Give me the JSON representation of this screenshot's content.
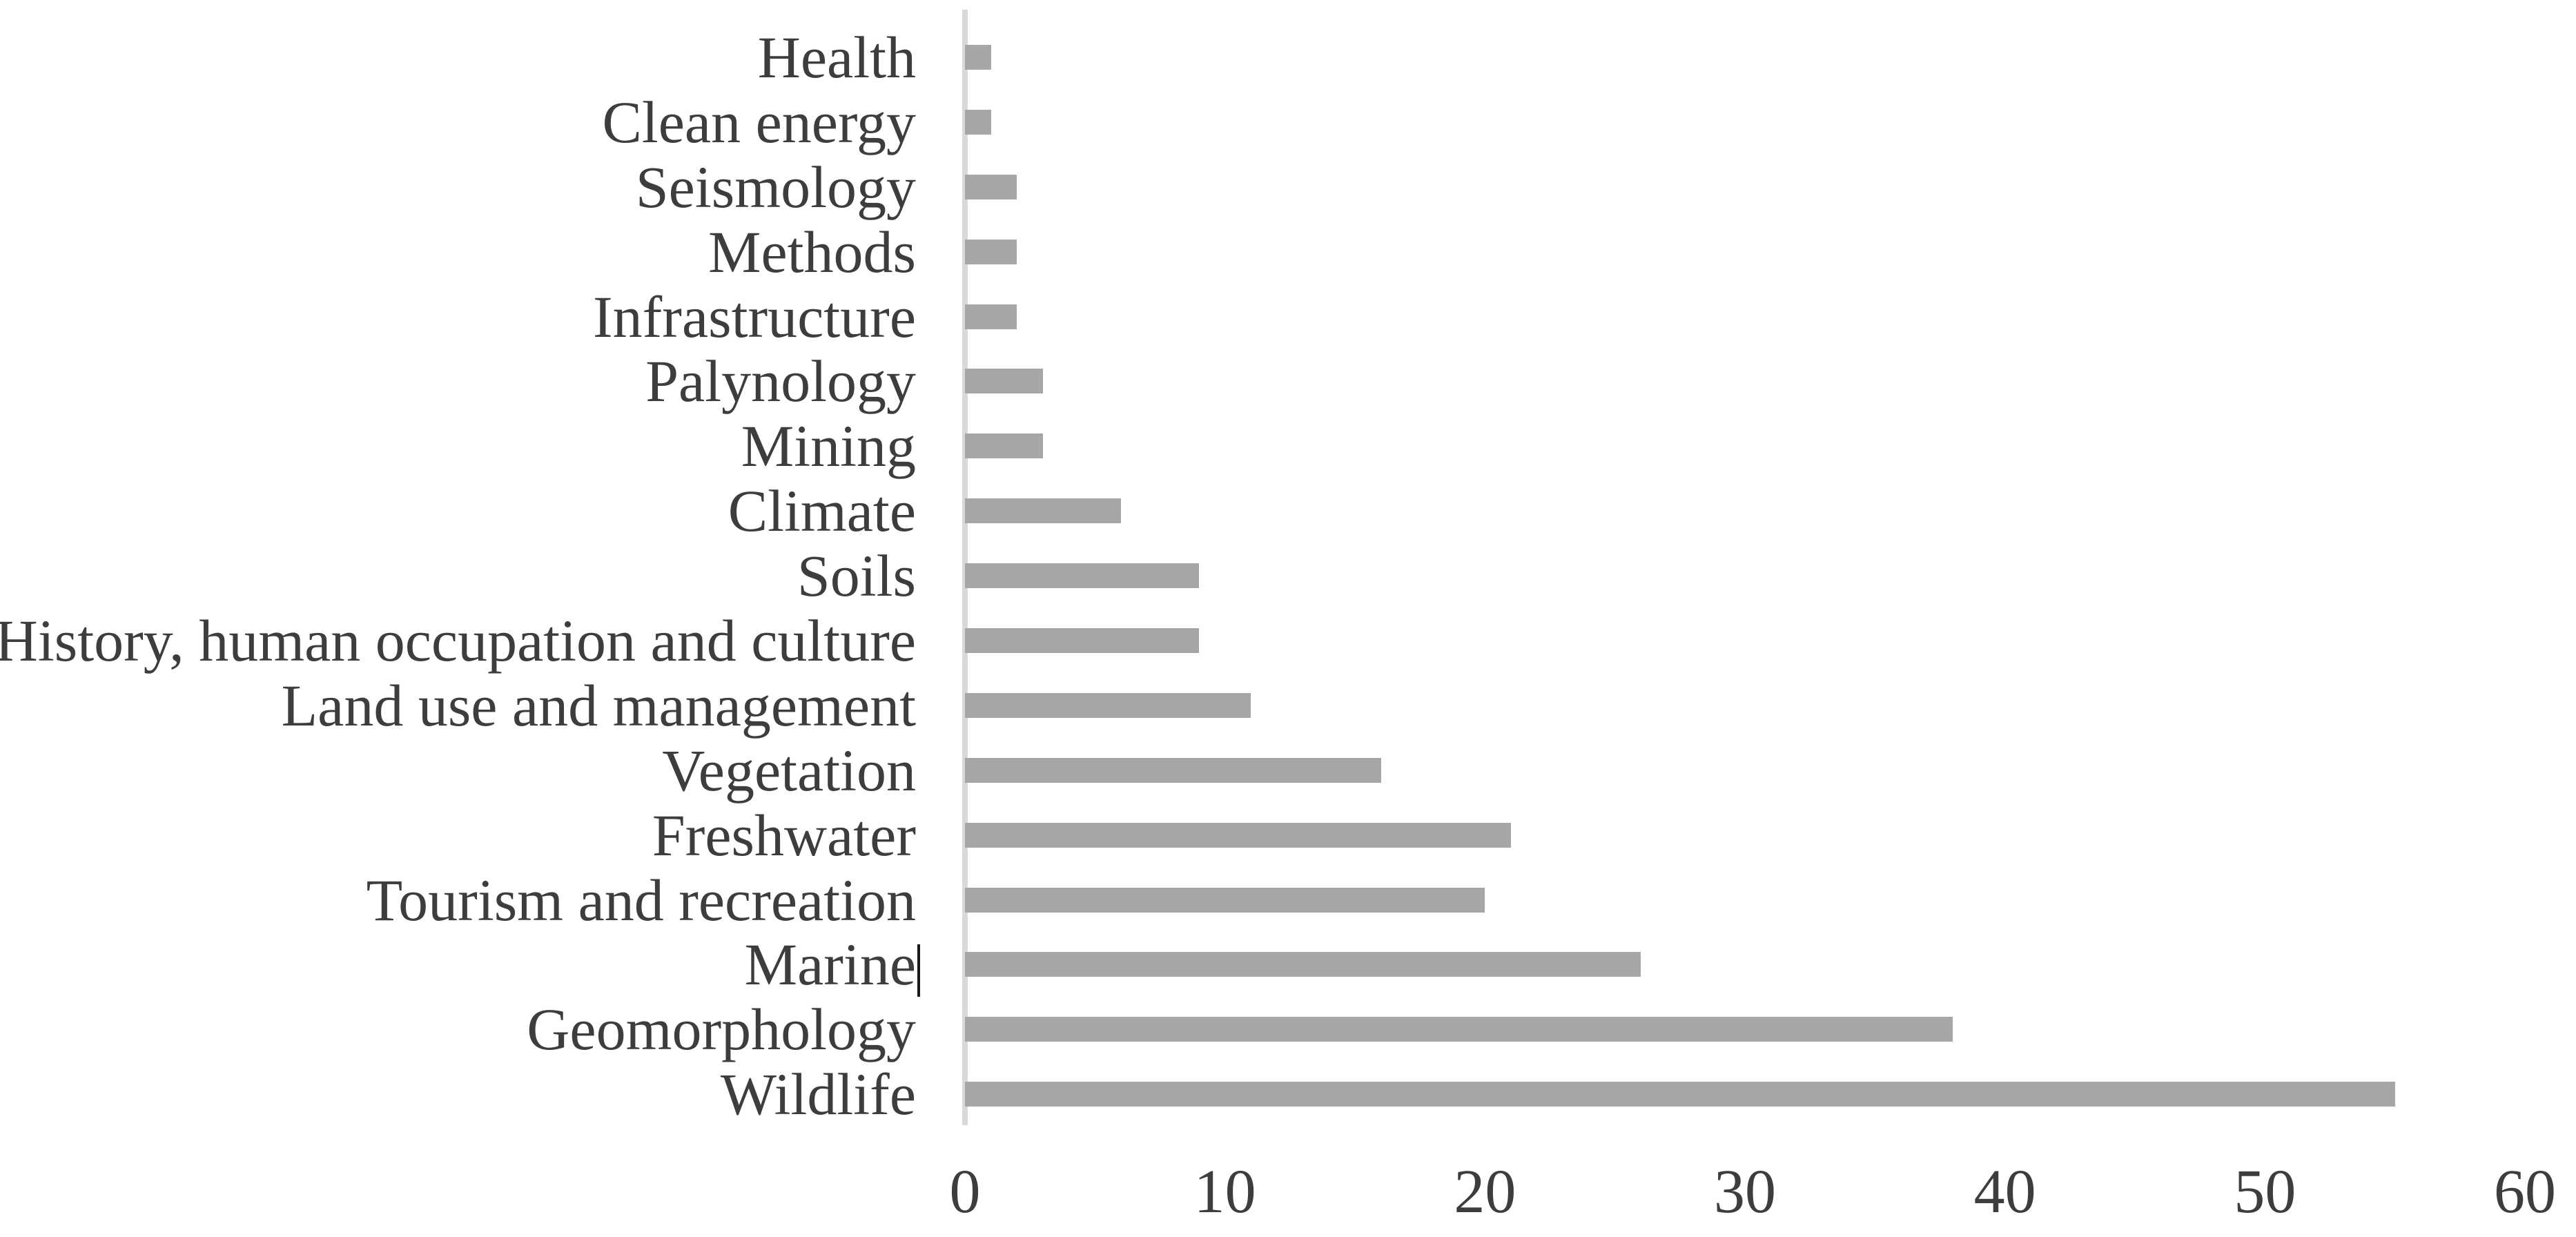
{
  "chart_data": {
    "type": "bar",
    "orientation": "horizontal",
    "title": "",
    "xlabel": "",
    "ylabel": "",
    "categories": [
      "Health",
      "Clean energy",
      "Seismology",
      "Methods",
      "Infrastructure",
      "Palynology",
      "Mining",
      "Climate",
      "Soils",
      "History, human occupation and culture",
      "Land use and management",
      "Vegetation",
      "Freshwater",
      "Tourism and recreation",
      "Marine",
      "Geomorphology",
      "Wildlife"
    ],
    "values": [
      1,
      1,
      2,
      2,
      2,
      3,
      3,
      6,
      9,
      9,
      11,
      16,
      21,
      20,
      26,
      38,
      55
    ],
    "xlim": [
      0,
      60
    ],
    "xticks": [
      0,
      10,
      20,
      30,
      40,
      50,
      60
    ],
    "grid": false,
    "legend": false,
    "bar_color": "#a6a6a6",
    "axis_line_color": "#d9d9d9",
    "text_color": "#3d3d3d",
    "text_caret_after_category": "Marine"
  }
}
